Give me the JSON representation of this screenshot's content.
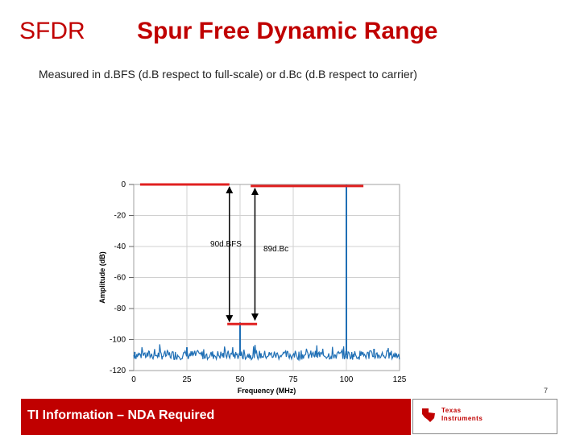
{
  "slide": {
    "heading_left": "SFDR",
    "heading_title": "Spur Free Dynamic Range",
    "subtitle": "Measured in d.BFS (d.B respect to full-scale) or d.Bc (d.B respect to carrier)",
    "page_number": "7",
    "footer_text": "TI Information – NDA Required",
    "logo_line1": "Texas",
    "logo_line2": "Instruments",
    "colors": {
      "accent": "#c00000",
      "trace": "#1f6fb5",
      "marker": "#e02020"
    }
  },
  "chart_data": {
    "type": "line",
    "xlabel": "Frequency (MHz)",
    "ylabel": "Amplitude (dB)",
    "xlim": [
      0,
      125
    ],
    "ylim": [
      -120,
      0
    ],
    "xticks": [
      0,
      25,
      50,
      75,
      100,
      125
    ],
    "yticks": [
      0,
      -20,
      -40,
      -60,
      -80,
      -100,
      -120
    ],
    "grid": true,
    "noise_floor_dB": -110,
    "spurs": [
      {
        "x": 0.5,
        "y": -108
      },
      {
        "x": 25,
        "y": -105
      },
      {
        "x": 50,
        "y": -89
      },
      {
        "x": 100,
        "y": 0
      },
      {
        "x": 113,
        "y": -106
      }
    ],
    "reference_lines": [
      {
        "name": "full-scale",
        "x": [
          3,
          45
        ],
        "y": 0
      },
      {
        "name": "carrier",
        "x": [
          55,
          108
        ],
        "y": -1
      },
      {
        "name": "spur",
        "x": [
          44,
          58
        ],
        "y": -90
      }
    ],
    "annotations": [
      {
        "label": "90d.BFS",
        "x": 36,
        "y": -40
      },
      {
        "label": "89d.Bc",
        "x": 61,
        "y": -43
      }
    ],
    "arrows": [
      {
        "x": 45,
        "y_from": 0,
        "y_to": -90
      },
      {
        "x": 57,
        "y_from": -1,
        "y_to": -89
      }
    ]
  }
}
